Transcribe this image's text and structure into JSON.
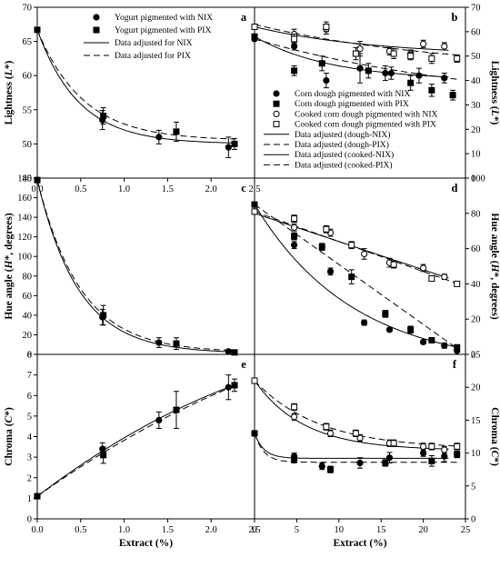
{
  "chart_data": [
    {
      "id": "a",
      "type": "scatter",
      "panel_label": "a",
      "xlim": [
        0,
        2.5
      ],
      "ylim": [
        45,
        70
      ],
      "xticks": [
        "0.0",
        "0.5",
        "1.0",
        "1.5",
        "2.0",
        "2.5"
      ],
      "yticks": [
        "45",
        "50",
        "55",
        "60",
        "65",
        "70"
      ],
      "ylabel": "Lightness (L*)",
      "xlabel": "",
      "legend": [
        {
          "label": "Yogurt pigmented with NIX",
          "kind": "marker",
          "symbol": "filled-circle"
        },
        {
          "label": "Yogurt pigmented with PIX",
          "kind": "marker",
          "symbol": "filled-square"
        },
        {
          "label": "Data adjusted for NIX",
          "kind": "line",
          "dash": "solid"
        },
        {
          "label": "Data adjusted for PIX",
          "kind": "line",
          "dash": "dashed"
        }
      ],
      "series": [
        {
          "symbol": "filled-circle",
          "points": [
            [
              0,
              66.7,
              0
            ],
            [
              0.75,
              53.5,
              1.4
            ],
            [
              1.4,
              51.0,
              1.0
            ],
            [
              2.2,
              49.5,
              1.5
            ]
          ]
        },
        {
          "symbol": "filled-square",
          "points": [
            [
              0,
              66.7,
              0
            ],
            [
              0.76,
              54.1,
              1.2
            ],
            [
              1.6,
              51.8,
              1.4
            ],
            [
              2.27,
              50.0,
              0.8
            ]
          ]
        }
      ],
      "fits": [
        {
          "dash": "solid",
          "kind": "exp",
          "a": 50.0,
          "b": 16.7,
          "k": 2.1,
          "x0": 0,
          "x1": 2.27
        },
        {
          "dash": "dashed",
          "kind": "exp",
          "a": 50.5,
          "b": 16.2,
          "k": 1.9,
          "x0": 0,
          "x1": 2.27
        }
      ]
    },
    {
      "id": "b",
      "type": "scatter",
      "panel_label": "b",
      "xlim": [
        0,
        25
      ],
      "ylim": [
        45,
        70
      ],
      "xticks": [],
      "yticks": [],
      "y2lim": [
        0,
        70
      ],
      "y2ticks": [
        "0",
        "10",
        "20",
        "30",
        "40",
        "50",
        "60",
        "70"
      ],
      "ylabel": "",
      "y2label": "Lightness (L*)",
      "xlabel": "",
      "legend": [
        {
          "label": "Corn dough pigmented with NIX",
          "kind": "marker",
          "symbol": "filled-circle"
        },
        {
          "label": "Corn dough pigmented with PIX",
          "kind": "marker",
          "symbol": "filled-square"
        },
        {
          "label": "Cooked corn dough pigmented with NIX",
          "kind": "marker",
          "symbol": "open-circle"
        },
        {
          "label": "Cooked corn dough pigmented with PIX",
          "kind": "marker",
          "symbol": "open-square"
        },
        {
          "label": "Data adjusted (dough-NIX)",
          "kind": "line",
          "dash": "solid"
        },
        {
          "label": "Data adjusted (dough-PIX)",
          "kind": "line",
          "dash": "dashed"
        },
        {
          "label": "Data adjusted (cooked-NIX)",
          "kind": "line",
          "dash": "solid"
        },
        {
          "label": "Data adjusted (cooked-PIX)",
          "kind": "line",
          "dash": "dashed"
        }
      ],
      "series": [
        {
          "symbol": "filled-circle",
          "axis": "y2",
          "points": [
            [
              0,
              57,
              0
            ],
            [
              4.7,
              54,
              1.5
            ],
            [
              8.5,
              40,
              3
            ],
            [
              12.5,
              45,
              6
            ],
            [
              15.5,
              43,
              3
            ],
            [
              16.2,
              43,
              2.5
            ],
            [
              19.5,
              42,
              3
            ],
            [
              22.5,
              41,
              2
            ]
          ]
        },
        {
          "symbol": "filled-square",
          "axis": "y2",
          "points": [
            [
              0,
              58,
              0
            ],
            [
              4.7,
              44,
              2
            ],
            [
              8,
              47,
              3
            ],
            [
              13.5,
              44,
              3
            ],
            [
              18.5,
              39,
              3
            ],
            [
              21,
              36,
              2.5
            ],
            [
              23.5,
              34,
              2
            ]
          ]
        },
        {
          "symbol": "open-circle",
          "axis": "y2",
          "points": [
            [
              0,
              62,
              0
            ],
            [
              4.7,
              59,
              2
            ],
            [
              8.5,
              61,
              2
            ],
            [
              12.5,
              53,
              3
            ],
            [
              16,
              52,
              1.5
            ],
            [
              18.5,
              51,
              1.5
            ],
            [
              20,
              55,
              1.5
            ],
            [
              22.5,
              54,
              1.5
            ]
          ]
        },
        {
          "symbol": "open-square",
          "axis": "y2",
          "points": [
            [
              0,
              62,
              0
            ],
            [
              4.7,
              57,
              2
            ],
            [
              8.5,
              62,
              2
            ],
            [
              12,
              51,
              2.5
            ],
            [
              16.5,
              51,
              2
            ],
            [
              18.5,
              50,
              1.5
            ],
            [
              21,
              49,
              2
            ],
            [
              24,
              49,
              1.5
            ]
          ]
        }
      ],
      "fits": [
        {
          "dash": "solid",
          "kind": "exp",
          "axis": "y2",
          "a": 40,
          "b": 18,
          "k": 0.11,
          "x0": 0,
          "x1": 23
        },
        {
          "dash": "dashed",
          "kind": "exp",
          "axis": "y2",
          "a": 28,
          "b": 29,
          "k": 0.035,
          "x0": 0,
          "x1": 24
        },
        {
          "dash": "solid",
          "kind": "exp",
          "axis": "y2",
          "a": 50,
          "b": 12,
          "k": 0.07,
          "x0": 0,
          "x1": 23
        },
        {
          "dash": "dashed",
          "kind": "exp",
          "axis": "y2",
          "a": 44,
          "b": 19,
          "k": 0.045,
          "x0": 0,
          "x1": 24
        }
      ]
    },
    {
      "id": "c",
      "type": "scatter",
      "panel_label": "c",
      "xlim": [
        0,
        2.5
      ],
      "ylim": [
        0,
        180
      ],
      "xticks": [],
      "yticks": [
        "0",
        "20",
        "40",
        "60",
        "80",
        "100",
        "120",
        "140",
        "160",
        "180"
      ],
      "ylabel": "Hue angle (H*, degrees)",
      "xlabel": "",
      "legend": [],
      "series": [
        {
          "symbol": "filled-circle",
          "points": [
            [
              0,
              178,
              0
            ],
            [
              0.75,
              38,
              8
            ],
            [
              1.4,
              12,
              5
            ],
            [
              2.2,
              3,
              2
            ]
          ]
        },
        {
          "symbol": "filled-square",
          "points": [
            [
              0,
              178,
              0
            ],
            [
              0.76,
              40,
              10
            ],
            [
              1.6,
              11,
              6
            ],
            [
              2.27,
              2,
              2
            ]
          ]
        }
      ],
      "fits": [
        {
          "dash": "solid",
          "kind": "exp",
          "a": 1,
          "b": 177,
          "k": 2.1,
          "x0": 0,
          "x1": 2.27
        },
        {
          "dash": "dashed",
          "kind": "exp",
          "a": 2,
          "b": 176,
          "k": 2.0,
          "x0": 0,
          "x1": 2.27
        }
      ]
    },
    {
      "id": "d",
      "type": "scatter",
      "panel_label": "d",
      "xlim": [
        0,
        25
      ],
      "ylim": [
        0,
        100
      ],
      "xticks": [],
      "yticks": [],
      "y2lim": [
        0,
        100
      ],
      "y2ticks": [
        "0",
        "20",
        "40",
        "60",
        "80",
        "100"
      ],
      "ylabel": "",
      "y2label": "Hue angle (H*, degrees)",
      "xlabel": "",
      "legend": [],
      "series": [
        {
          "symbol": "filled-circle",
          "points": [
            [
              0,
              85,
              0
            ],
            [
              4.7,
              62,
              2
            ],
            [
              9,
              47,
              2
            ],
            [
              13,
              18,
              1.5
            ],
            [
              16,
              14,
              1
            ],
            [
              20,
              7,
              1
            ],
            [
              22.5,
              5,
              1.5
            ],
            [
              24,
              2,
              2
            ]
          ]
        },
        {
          "symbol": "filled-square",
          "points": [
            [
              0,
              85,
              0
            ],
            [
              4.7,
              67,
              2
            ],
            [
              8,
              61,
              2
            ],
            [
              11.5,
              44,
              4
            ],
            [
              15.5,
              23,
              2
            ],
            [
              18.5,
              14,
              2
            ],
            [
              21,
              8,
              1
            ],
            [
              24,
              4,
              1
            ]
          ]
        },
        {
          "symbol": "open-circle",
          "points": [
            [
              0,
              81,
              0
            ],
            [
              4.7,
              72,
              2
            ],
            [
              9,
              69,
              2
            ],
            [
              13,
              57,
              3
            ],
            [
              16,
              52,
              2.5
            ],
            [
              20,
              49,
              2
            ],
            [
              22.5,
              44,
              1.5
            ]
          ]
        },
        {
          "symbol": "open-square",
          "points": [
            [
              0,
              81,
              0
            ],
            [
              4.7,
              77,
              2
            ],
            [
              8.5,
              71,
              2
            ],
            [
              11.5,
              62,
              2
            ],
            [
              16.5,
              51,
              2
            ],
            [
              21,
              43,
              1.5
            ],
            [
              24,
              40,
              1
            ]
          ]
        }
      ],
      "fits": [
        {
          "dash": "solid",
          "kind": "exp",
          "a": -8,
          "b": 93,
          "k": 0.085,
          "x0": 0,
          "x1": 24
        },
        {
          "dash": "dashed",
          "kind": "linear",
          "m": -3.4,
          "c": 85,
          "x0": 0,
          "x1": 24
        },
        {
          "dash": "solid",
          "kind": "linear",
          "m": -1.6,
          "c": 80,
          "x0": 0,
          "x1": 23
        },
        {
          "dash": "dashed",
          "kind": "linear",
          "m": -1.7,
          "c": 81,
          "x0": 0,
          "x1": 24
        }
      ]
    },
    {
      "id": "e",
      "type": "scatter",
      "panel_label": "e",
      "xlim": [
        0,
        2.5
      ],
      "ylim": [
        0,
        8
      ],
      "xticks": [
        "0.0",
        "0.5",
        "1.0",
        "1.5",
        "2.0",
        "2.5"
      ],
      "yticks": [
        "0",
        "1",
        "2",
        "3",
        "4",
        "5",
        "6",
        "7",
        "8"
      ],
      "ylabel": "Chroma (C*)",
      "xlabel": "Extract (%)",
      "legend": [],
      "series": [
        {
          "symbol": "filled-circle",
          "points": [
            [
              0,
              1.1,
              0
            ],
            [
              0.75,
              3.4,
              0.3
            ],
            [
              1.4,
              4.8,
              0.4
            ],
            [
              2.2,
              6.4,
              0.6
            ]
          ]
        },
        {
          "symbol": "filled-square",
          "points": [
            [
              0,
              1.1,
              0
            ],
            [
              0.76,
              3.1,
              0.4
            ],
            [
              1.6,
              5.3,
              0.9
            ],
            [
              2.27,
              6.5,
              0.3
            ]
          ]
        }
      ],
      "fits": [
        {
          "dash": "solid",
          "kind": "poly2",
          "p": [
            1.1,
            3.2,
            -0.36
          ],
          "x0": 0,
          "x1": 2.27
        },
        {
          "dash": "dashed",
          "kind": "poly2",
          "p": [
            1.1,
            3.0,
            -0.28
          ],
          "x0": 0,
          "x1": 2.27
        }
      ]
    },
    {
      "id": "f",
      "type": "scatter",
      "panel_label": "f",
      "xlim": [
        0,
        25
      ],
      "ylim": [
        0,
        8
      ],
      "xticks": [
        "0",
        "5",
        "10",
        "15",
        "20",
        "25"
      ],
      "yticks": [],
      "y2lim": [
        0,
        25
      ],
      "y2ticks": [
        "0",
        "5",
        "10",
        "15",
        "20",
        "25"
      ],
      "ylabel": "",
      "y2label": "Chroma (C*)",
      "xlabel": "Extract (%)",
      "legend": [],
      "series": [
        {
          "symbol": "filled-circle",
          "axis": "y2",
          "points": [
            [
              0,
              13,
              0
            ],
            [
              4.7,
              9.5,
              0.5
            ],
            [
              8,
              8,
              0.5
            ],
            [
              12.5,
              8.5,
              0.8
            ],
            [
              16,
              9.3,
              0.8
            ],
            [
              20,
              10,
              0.5
            ],
            [
              22.5,
              9.5,
              0.8
            ]
          ]
        },
        {
          "symbol": "filled-square",
          "axis": "y2",
          "points": [
            [
              0,
              13,
              0
            ],
            [
              4.7,
              9,
              0.5
            ],
            [
              9,
              7.5,
              0.5
            ],
            [
              15.5,
              8.5,
              0.5
            ],
            [
              21,
              8.8,
              0.8
            ],
            [
              24,
              9.8,
              0.5
            ]
          ]
        },
        {
          "symbol": "open-circle",
          "axis": "y2",
          "points": [
            [
              0,
              21,
              0
            ],
            [
              4.7,
              15.5,
              0.5
            ],
            [
              9,
              13,
              0.5
            ],
            [
              12.5,
              12.3,
              0.5
            ],
            [
              16,
              11.5,
              0.5
            ],
            [
              20,
              11,
              0.5
            ],
            [
              22.5,
              10.5,
              0.5
            ]
          ]
        },
        {
          "symbol": "open-square",
          "axis": "y2",
          "points": [
            [
              0,
              21,
              0
            ],
            [
              4.7,
              17,
              0.5
            ],
            [
              8.5,
              14,
              0.5
            ],
            [
              12,
              13,
              0.5
            ],
            [
              16.5,
              11.5,
              0.5
            ],
            [
              21,
              11,
              0.5
            ],
            [
              24,
              11,
              0.5
            ]
          ]
        }
      ],
      "fits": [
        {
          "dash": "solid",
          "kind": "exp",
          "axis": "y2",
          "a": 9.2,
          "b": 3.8,
          "k": 0.9,
          "x0": 0,
          "x1": 23
        },
        {
          "dash": "dashed",
          "kind": "exp",
          "axis": "y2",
          "a": 8.6,
          "b": 4.4,
          "k": 0.9,
          "x0": 0,
          "x1": 24
        },
        {
          "dash": "solid",
          "kind": "exp",
          "axis": "y2",
          "a": 10.4,
          "b": 10.6,
          "k": 0.17,
          "x0": 0,
          "x1": 23
        },
        {
          "dash": "dashed",
          "kind": "exp",
          "axis": "y2",
          "a": 10.6,
          "b": 10.4,
          "k": 0.13,
          "x0": 0,
          "x1": 24
        }
      ]
    }
  ]
}
